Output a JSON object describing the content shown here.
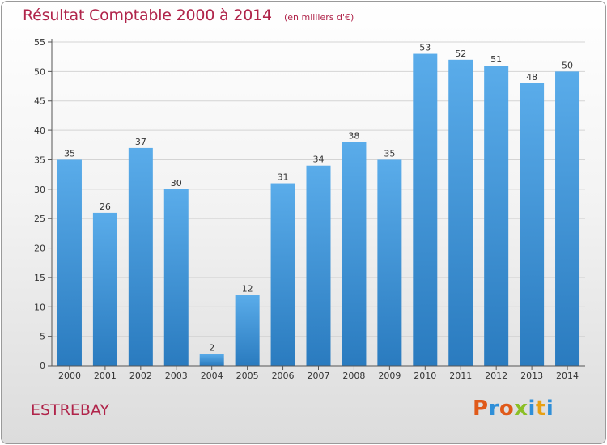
{
  "header": {
    "title": "Résultat Comptable 2000 à 2014",
    "subtitle": "(en milliers d'€)"
  },
  "footer": {
    "commune": "ESTREBAY",
    "brand_logo_text": "Proxiti"
  },
  "colors": {
    "title": "#b0244a",
    "bar_top": "#5aacea",
    "bar_bottom": "#2a7bbf",
    "grid": "#d4d4d4",
    "logo": [
      "#e05a1a",
      "#2f8fd8",
      "#e05a1a",
      "#8bbf26",
      "#2f8fd8",
      "#e8a012",
      "#2f8fd8"
    ]
  },
  "chart_data": {
    "type": "bar",
    "categories": [
      "2000",
      "2001",
      "2002",
      "2003",
      "2004",
      "2005",
      "2006",
      "2007",
      "2008",
      "2009",
      "2010",
      "2011",
      "2012",
      "2013",
      "2014"
    ],
    "values": [
      35,
      26,
      37,
      30,
      2,
      12,
      31,
      34,
      38,
      35,
      53,
      52,
      51,
      48,
      50
    ],
    "data_labels": [
      "35",
      "26",
      "37",
      "30",
      "2",
      "12",
      "31",
      "34",
      "38",
      "35",
      "53",
      "52",
      "51",
      "48",
      "50"
    ],
    "title": "Résultat Comptable 2000 à 2014",
    "subtitle": "(en milliers d'€)",
    "xlabel": "",
    "ylabel": "",
    "ylim": [
      0,
      55
    ],
    "yticks": [
      "0",
      "5",
      "10",
      "15",
      "20",
      "25",
      "30",
      "35",
      "40",
      "45",
      "50",
      "55"
    ],
    "grid": true
  }
}
